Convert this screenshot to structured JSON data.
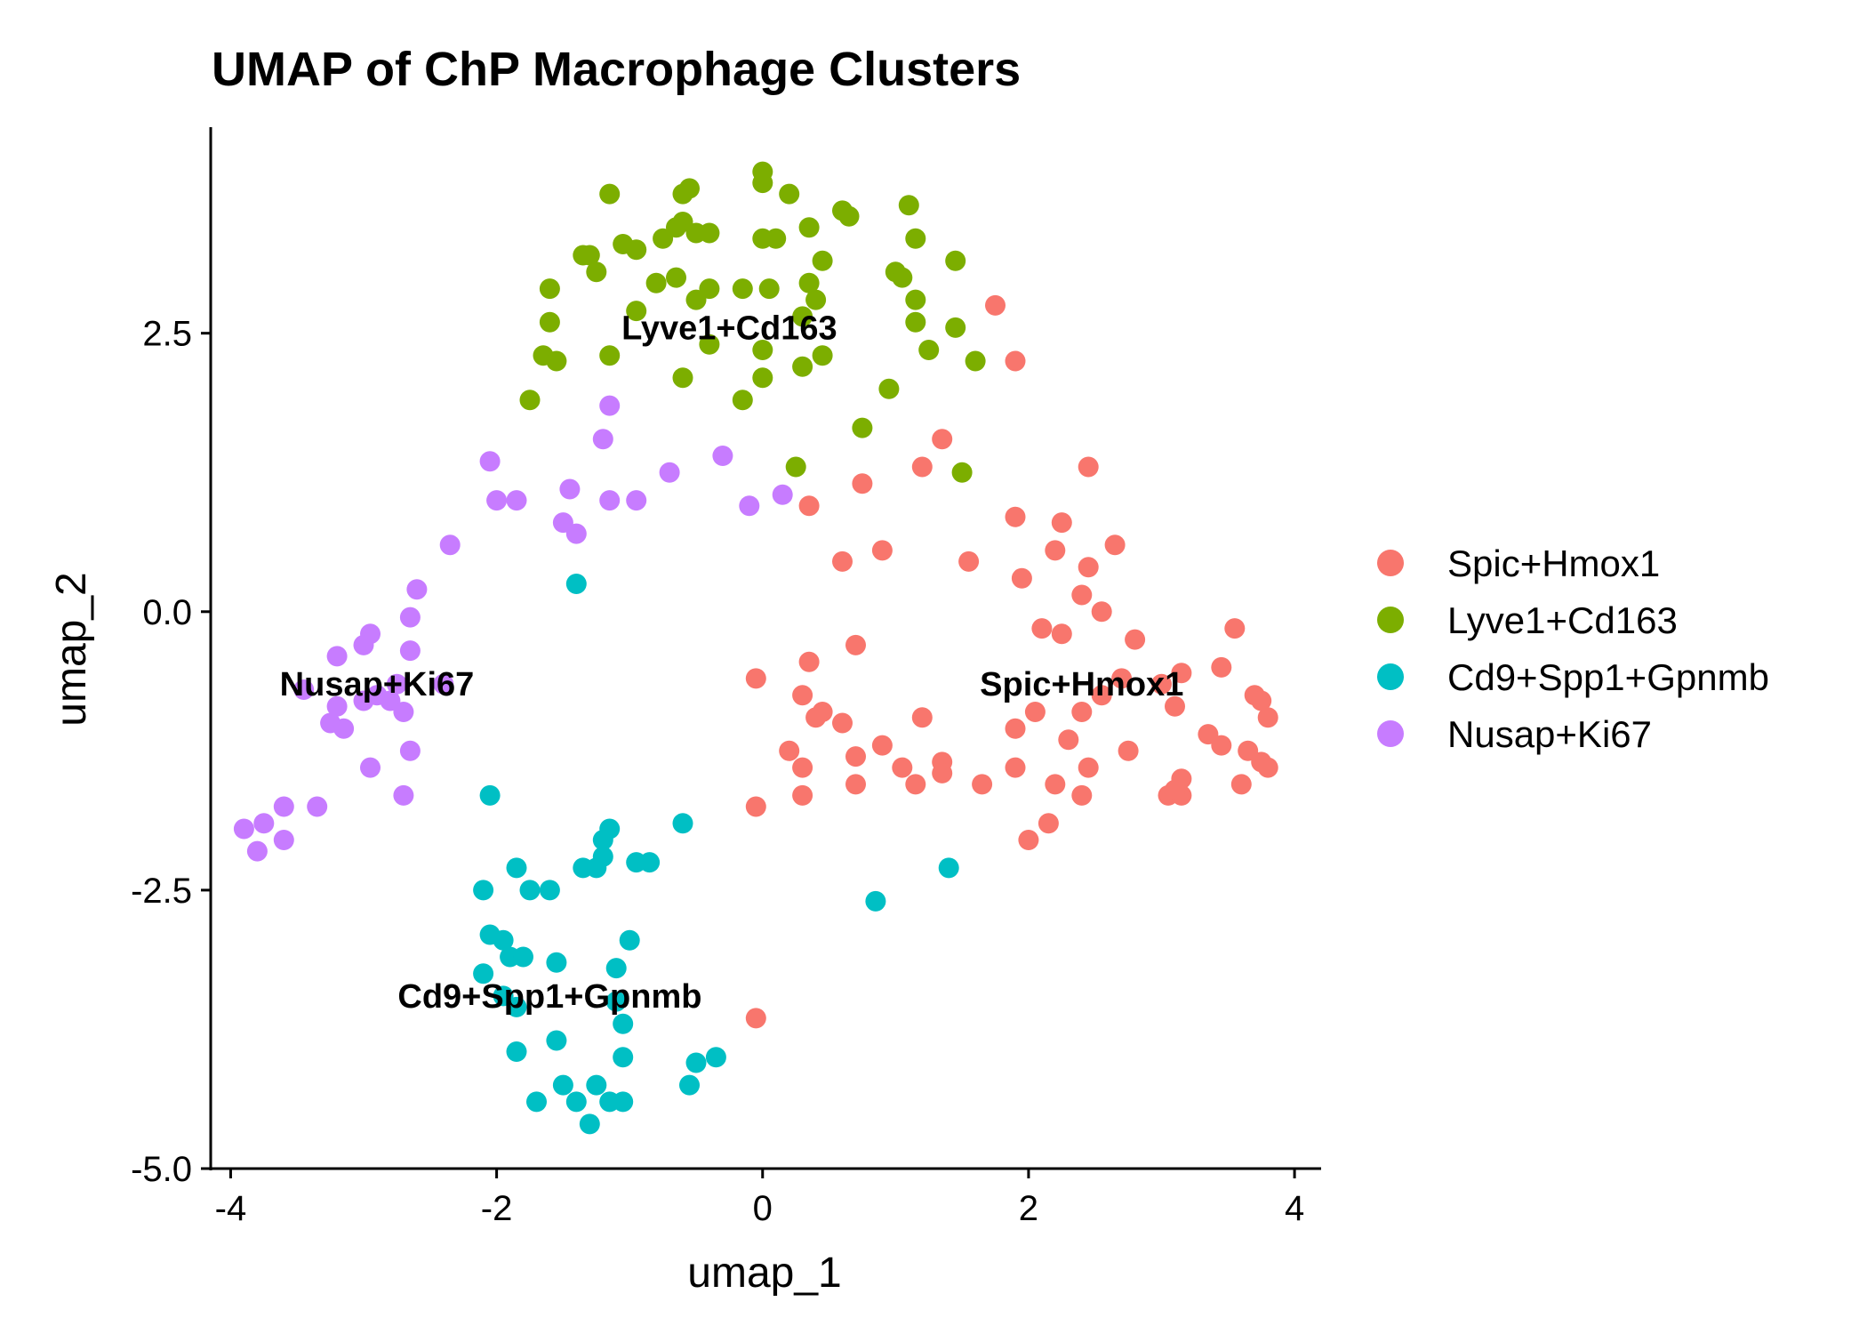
{
  "chart_data": {
    "type": "scatter",
    "title": "UMAP of ChP Macrophage Clusters",
    "xlabel": "umap_1",
    "ylabel": "umap_2",
    "xlim": [
      -4.15,
      4.2
    ],
    "ylim": [
      -5.0,
      4.35
    ],
    "x_ticks": [
      -4,
      -2,
      0,
      2,
      4
    ],
    "x_tick_labels": [
      "-4",
      "-2",
      "0",
      "2",
      "4"
    ],
    "y_ticks": [
      -5,
      -2.5,
      0,
      2.5
    ],
    "y_tick_labels": [
      "-5.0",
      "-2.5",
      "0.0",
      "2.5"
    ],
    "grid": false,
    "legend_position": "right",
    "series": [
      {
        "name": "Spic+Hmox1",
        "color": "#F8766D",
        "points": [
          [
            1.75,
            2.75
          ],
          [
            1.9,
            2.25
          ],
          [
            1.35,
            1.55
          ],
          [
            1.2,
            1.3
          ],
          [
            2.45,
            1.3
          ],
          [
            0.75,
            1.15
          ],
          [
            0.35,
            0.95
          ],
          [
            1.9,
            0.85
          ],
          [
            2.25,
            0.8
          ],
          [
            2.65,
            0.6
          ],
          [
            0.9,
            0.55
          ],
          [
            0.6,
            0.45
          ],
          [
            1.55,
            0.45
          ],
          [
            2.2,
            0.55
          ],
          [
            2.45,
            0.4
          ],
          [
            1.95,
            0.3
          ],
          [
            2.4,
            0.15
          ],
          [
            2.55,
            0.0
          ],
          [
            2.1,
            -0.15
          ],
          [
            2.25,
            -0.2
          ],
          [
            2.8,
            -0.25
          ],
          [
            3.55,
            -0.15
          ],
          [
            3.15,
            -0.55
          ],
          [
            3.45,
            -0.5
          ],
          [
            0.7,
            -0.3
          ],
          [
            0.35,
            -0.45
          ],
          [
            -0.05,
            -0.6
          ],
          [
            0.3,
            -0.75
          ],
          [
            2.7,
            -0.6
          ],
          [
            3.0,
            -0.65
          ],
          [
            2.55,
            -0.75
          ],
          [
            3.7,
            -0.75
          ],
          [
            3.75,
            -0.8
          ],
          [
            0.45,
            -0.9
          ],
          [
            0.4,
            -0.95
          ],
          [
            3.1,
            -0.85
          ],
          [
            2.05,
            -0.9
          ],
          [
            2.4,
            -0.9
          ],
          [
            1.2,
            -0.95
          ],
          [
            3.8,
            -0.95
          ],
          [
            0.6,
            -1.0
          ],
          [
            1.9,
            -1.05
          ],
          [
            3.35,
            -1.1
          ],
          [
            2.3,
            -1.15
          ],
          [
            3.45,
            -1.2
          ],
          [
            3.65,
            -1.25
          ],
          [
            0.9,
            -1.2
          ],
          [
            0.2,
            -1.25
          ],
          [
            0.7,
            -1.3
          ],
          [
            2.75,
            -1.25
          ],
          [
            1.35,
            -1.35
          ],
          [
            3.75,
            -1.35
          ],
          [
            3.8,
            -1.4
          ],
          [
            1.9,
            -1.4
          ],
          [
            1.05,
            -1.4
          ],
          [
            0.3,
            -1.4
          ],
          [
            2.45,
            -1.4
          ],
          [
            1.35,
            -1.45
          ],
          [
            3.15,
            -1.5
          ],
          [
            1.65,
            -1.55
          ],
          [
            2.2,
            -1.55
          ],
          [
            0.7,
            -1.55
          ],
          [
            1.15,
            -1.55
          ],
          [
            3.6,
            -1.55
          ],
          [
            3.05,
            -1.65
          ],
          [
            3.15,
            -1.65
          ],
          [
            3.1,
            -1.6
          ],
          [
            0.3,
            -1.65
          ],
          [
            2.4,
            -1.65
          ],
          [
            -0.05,
            -1.75
          ],
          [
            2.15,
            -1.9
          ],
          [
            2.0,
            -2.05
          ],
          [
            -0.05,
            -3.65
          ]
        ]
      },
      {
        "name": "Lyve1+Cd163",
        "color": "#7CAE00",
        "points": [
          [
            0.0,
            3.95
          ],
          [
            0.0,
            3.85
          ],
          [
            -0.55,
            3.8
          ],
          [
            -0.6,
            3.75
          ],
          [
            -1.15,
            3.75
          ],
          [
            0.2,
            3.75
          ],
          [
            1.1,
            3.65
          ],
          [
            0.6,
            3.6
          ],
          [
            0.65,
            3.55
          ],
          [
            -0.6,
            3.5
          ],
          [
            0.35,
            3.45
          ],
          [
            -0.65,
            3.45
          ],
          [
            -0.4,
            3.4
          ],
          [
            0.0,
            3.35
          ],
          [
            0.1,
            3.35
          ],
          [
            1.15,
            3.35
          ],
          [
            -0.75,
            3.35
          ],
          [
            -0.5,
            3.4
          ],
          [
            -1.05,
            3.3
          ],
          [
            -0.95,
            3.25
          ],
          [
            -1.3,
            3.2
          ],
          [
            -1.35,
            3.2
          ],
          [
            0.45,
            3.15
          ],
          [
            1.45,
            3.15
          ],
          [
            1.0,
            3.05
          ],
          [
            -1.25,
            3.05
          ],
          [
            -0.65,
            3.0
          ],
          [
            0.35,
            2.95
          ],
          [
            1.05,
            3.0
          ],
          [
            -0.8,
            2.95
          ],
          [
            -1.6,
            2.9
          ],
          [
            -0.4,
            2.9
          ],
          [
            -0.15,
            2.9
          ],
          [
            0.05,
            2.9
          ],
          [
            -0.5,
            2.8
          ],
          [
            0.4,
            2.8
          ],
          [
            1.15,
            2.8
          ],
          [
            -0.95,
            2.7
          ],
          [
            0.3,
            2.65
          ],
          [
            1.15,
            2.6
          ],
          [
            -1.6,
            2.6
          ],
          [
            1.45,
            2.55
          ],
          [
            -0.4,
            2.4
          ],
          [
            0.0,
            2.35
          ],
          [
            0.45,
            2.3
          ],
          [
            -1.15,
            2.3
          ],
          [
            -1.65,
            2.3
          ],
          [
            1.25,
            2.35
          ],
          [
            1.6,
            2.25
          ],
          [
            -1.55,
            2.25
          ],
          [
            0.3,
            2.2
          ],
          [
            0.0,
            2.1
          ],
          [
            -0.6,
            2.1
          ],
          [
            0.95,
            2.0
          ],
          [
            -1.75,
            1.9
          ],
          [
            -0.15,
            1.9
          ],
          [
            0.75,
            1.65
          ],
          [
            0.25,
            1.3
          ],
          [
            1.5,
            1.25
          ]
        ]
      },
      {
        "name": "Cd9+Spp1+Gpnmb",
        "color": "#00BFC4",
        "points": [
          [
            -1.4,
            0.25
          ],
          [
            -2.05,
            -1.65
          ],
          [
            -0.6,
            -1.9
          ],
          [
            -1.15,
            -1.95
          ],
          [
            -1.2,
            -2.05
          ],
          [
            -1.2,
            -2.2
          ],
          [
            -0.85,
            -2.25
          ],
          [
            -1.35,
            -2.3
          ],
          [
            -1.25,
            -2.3
          ],
          [
            -0.95,
            -2.25
          ],
          [
            -1.85,
            -2.3
          ],
          [
            1.4,
            -2.3
          ],
          [
            -2.1,
            -2.5
          ],
          [
            -1.75,
            -2.5
          ],
          [
            -1.6,
            -2.5
          ],
          [
            0.85,
            -2.6
          ],
          [
            -2.05,
            -2.9
          ],
          [
            -1.95,
            -2.95
          ],
          [
            -1.0,
            -2.95
          ],
          [
            -1.9,
            -3.1
          ],
          [
            -1.8,
            -3.1
          ],
          [
            -1.55,
            -3.15
          ],
          [
            -2.1,
            -3.25
          ],
          [
            -1.1,
            -3.2
          ],
          [
            -1.95,
            -3.45
          ],
          [
            -1.85,
            -3.55
          ],
          [
            -1.1,
            -3.5
          ],
          [
            -1.05,
            -3.7
          ],
          [
            -1.55,
            -3.85
          ],
          [
            -1.85,
            -3.95
          ],
          [
            -1.05,
            -4.0
          ],
          [
            -0.35,
            -4.0
          ],
          [
            -0.5,
            -4.05
          ],
          [
            -1.5,
            -4.25
          ],
          [
            -1.25,
            -4.25
          ],
          [
            -0.55,
            -4.25
          ],
          [
            -1.7,
            -4.4
          ],
          [
            -1.4,
            -4.4
          ],
          [
            -1.15,
            -4.4
          ],
          [
            -1.05,
            -4.4
          ],
          [
            -1.3,
            -4.6
          ]
        ]
      },
      {
        "name": "Nusap+Ki67",
        "color": "#C77CFF",
        "points": [
          [
            -1.15,
            1.85
          ],
          [
            -1.2,
            1.55
          ],
          [
            -2.05,
            1.35
          ],
          [
            -0.7,
            1.25
          ],
          [
            -0.3,
            1.4
          ],
          [
            -1.45,
            1.1
          ],
          [
            -2.0,
            1.0
          ],
          [
            -1.85,
            1.0
          ],
          [
            -1.15,
            1.0
          ],
          [
            -0.95,
            1.0
          ],
          [
            -0.1,
            0.95
          ],
          [
            0.15,
            1.05
          ],
          [
            -1.5,
            0.8
          ],
          [
            -1.4,
            0.7
          ],
          [
            -2.35,
            0.6
          ],
          [
            -2.6,
            0.2
          ],
          [
            -2.65,
            -0.05
          ],
          [
            -2.95,
            -0.2
          ],
          [
            -3.0,
            -0.3
          ],
          [
            -2.65,
            -0.35
          ],
          [
            -3.2,
            -0.4
          ],
          [
            -2.4,
            -0.65
          ],
          [
            -2.75,
            -0.65
          ],
          [
            -3.45,
            -0.7
          ],
          [
            -2.9,
            -0.75
          ],
          [
            -3.0,
            -0.8
          ],
          [
            -2.8,
            -0.8
          ],
          [
            -3.2,
            -0.85
          ],
          [
            -2.7,
            -0.9
          ],
          [
            -3.25,
            -1.0
          ],
          [
            -3.15,
            -1.05
          ],
          [
            -2.65,
            -1.25
          ],
          [
            -2.95,
            -1.4
          ],
          [
            -2.7,
            -1.65
          ],
          [
            -3.35,
            -1.75
          ],
          [
            -3.6,
            -1.75
          ],
          [
            -3.75,
            -1.9
          ],
          [
            -3.9,
            -1.95
          ],
          [
            -3.6,
            -2.05
          ],
          [
            -3.8,
            -2.15
          ]
        ]
      }
    ],
    "cluster_labels": [
      {
        "text": "Lyve1+Cd163",
        "x": -0.25,
        "y": 2.55
      },
      {
        "text": "Nusap+Ki67",
        "x": -2.9,
        "y": -0.65
      },
      {
        "text": "Spic+Hmox1",
        "x": 2.4,
        "y": -0.65
      },
      {
        "text": "Cd9+Spp1+Gpnmb",
        "x": -1.6,
        "y": -3.45
      }
    ]
  }
}
